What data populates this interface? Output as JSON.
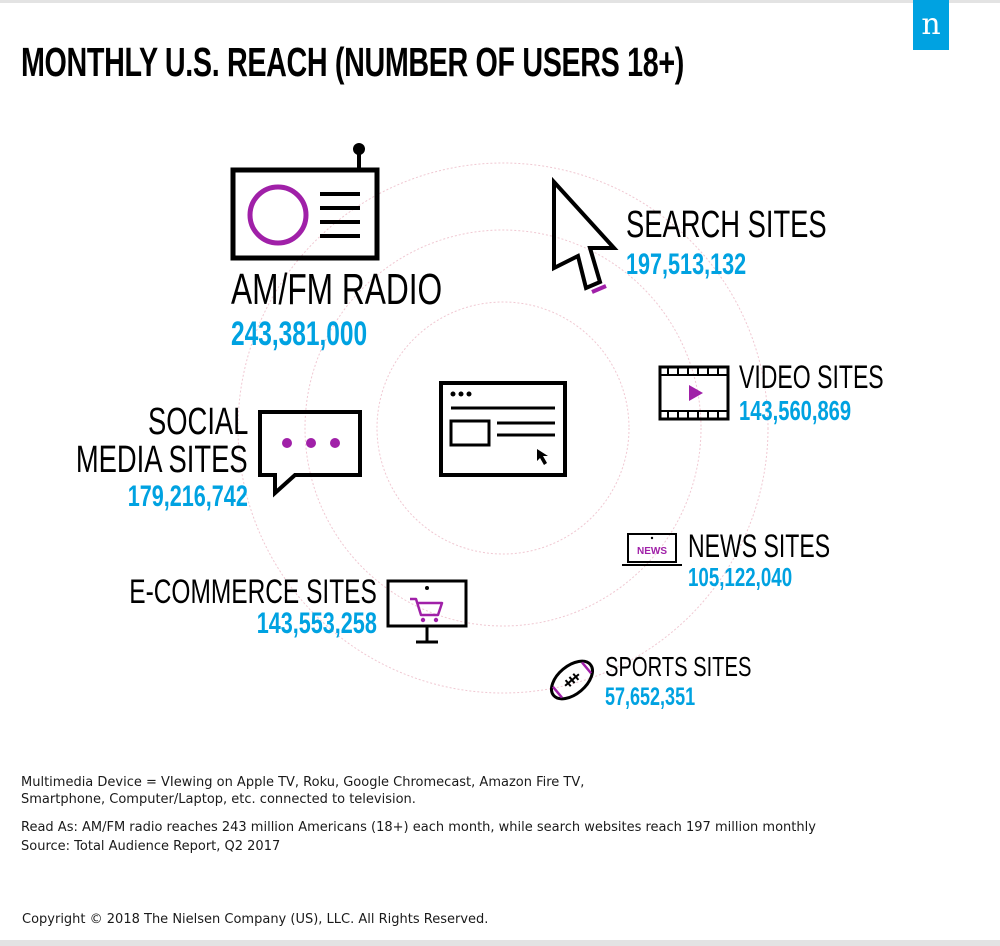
{
  "chart_data": {
    "type": "bar",
    "title": "MONTHLY U.S. REACH (NUMBER OF USERS 18+)",
    "categories": [
      "AM/FM RADIO",
      "SEARCH SITES",
      "VIDEO SITES",
      "SOCIAL MEDIA SITES",
      "NEWS SITES",
      "E-COMMERCE SITES",
      "SPORTS SITES"
    ],
    "values": [
      243381000,
      197513132,
      143560869,
      179216742,
      105122040,
      143553258,
      57652351
    ],
    "value_labels": [
      "243,381,000",
      "197,513,132",
      "143,560,869",
      "179,216,742",
      "105,122,040",
      "143,553,258",
      "57,652,351"
    ],
    "social_label_line1": "SOCIAL",
    "social_label_line2": "MEDIA SITES",
    "news_icon_text": "NEWS"
  },
  "logo_letter": "n",
  "footnotes": {
    "line1": "Multimedia Device = VIewing on Apple TV, Roku, Google Chromecast, Amazon Fire TV,",
    "line2": "Smartphone, Computer/Laptop, etc. connected to television.",
    "line3": "Read As: AM/FM radio reaches 243 million Americans (18+) each month, while search websites  reach 197 million monthly",
    "line4": "Source: Total Audience Report, Q2 2017",
    "copyright": "Copyright © 2018 The Nielsen Company (US), LLC. All Rights Reserved."
  },
  "colors": {
    "accent_blue": "#00a2e1",
    "accent_purple": "#a020a8",
    "ring": "#f0c8d2"
  },
  "icons": [
    "radio-icon",
    "cursor-arrow-icon",
    "film-strip-icon",
    "speech-bubble-icon",
    "browser-window-icon",
    "laptop-news-icon",
    "monitor-cart-icon",
    "football-icon"
  ]
}
